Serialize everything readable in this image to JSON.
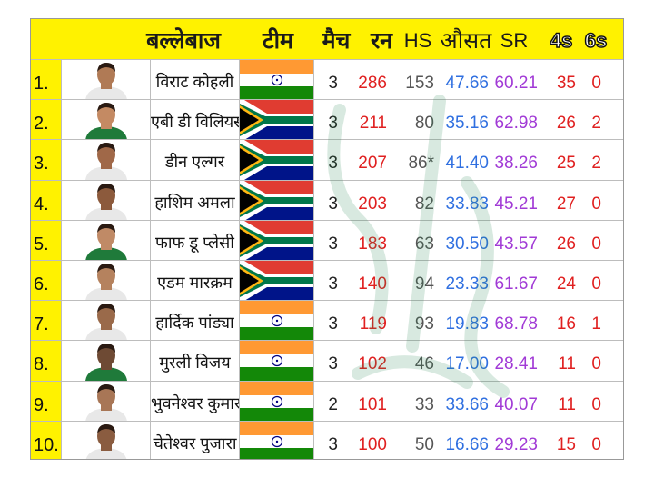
{
  "colors": {
    "header_bg": "#fff200",
    "runs": "#e02020",
    "average": "#2f6fe0",
    "strike_rate": "#a13ad6",
    "highest_score": "#555555"
  },
  "header": {
    "batsman": "बल्लेबाज",
    "team": "टीम",
    "matches": "मैच",
    "runs": "रन",
    "highest_score": "HS",
    "average": "औसत",
    "strike_rate": "SR",
    "fours": "4s",
    "sixes": "6s"
  },
  "rows": [
    {
      "rank": "1.",
      "name": "विराट कोहली",
      "team_flag": "india-flag",
      "matches": "3",
      "runs": "286",
      "hs": "153",
      "avg": "47.66",
      "sr": "60.21",
      "fours": "35",
      "sixes": "0"
    },
    {
      "rank": "2.",
      "name": "एबी डी विलियर्स",
      "team_flag": "south-africa-flag",
      "matches": "3",
      "runs": "211",
      "hs": "80",
      "avg": "35.16",
      "sr": "62.98",
      "fours": "26",
      "sixes": "2"
    },
    {
      "rank": "3.",
      "name": "डीन एल्गर",
      "team_flag": "south-africa-flag",
      "matches": "3",
      "runs": "207",
      "hs": "86*",
      "avg": "41.40",
      "sr": "38.26",
      "fours": "25",
      "sixes": "2"
    },
    {
      "rank": "4.",
      "name": "हाशिम अमला",
      "team_flag": "south-africa-flag",
      "matches": "3",
      "runs": "203",
      "hs": "82",
      "avg": "33.83",
      "sr": "45.21",
      "fours": "27",
      "sixes": "0"
    },
    {
      "rank": "5.",
      "name": "फाफ डू प्लेसी",
      "team_flag": "south-africa-flag",
      "matches": "3",
      "runs": "183",
      "hs": "63",
      "avg": "30.50",
      "sr": "43.57",
      "fours": "26",
      "sixes": "0"
    },
    {
      "rank": "6.",
      "name": "एडम मारक्रम",
      "team_flag": "south-africa-flag",
      "matches": "3",
      "runs": "140",
      "hs": "94",
      "avg": "23.33",
      "sr": "61.67",
      "fours": "24",
      "sixes": "0"
    },
    {
      "rank": "7.",
      "name": "हार्दिक पांड्या",
      "team_flag": "india-flag",
      "matches": "3",
      "runs": "119",
      "hs": "93",
      "avg": "19.83",
      "sr": "68.78",
      "fours": "16",
      "sixes": "1"
    },
    {
      "rank": "8.",
      "name": "मुरली विजय",
      "team_flag": "india-flag",
      "matches": "3",
      "runs": "102",
      "hs": "46",
      "avg": "17.00",
      "sr": "28.41",
      "fours": "11",
      "sixes": "0"
    },
    {
      "rank": "9.",
      "name": "भुवनेश्वर कुमार",
      "team_flag": "india-flag",
      "matches": "2",
      "runs": "101",
      "hs": "33",
      "avg": "33.66",
      "sr": "40.07",
      "fours": "11",
      "sixes": "0"
    },
    {
      "rank": "10.",
      "name": "चेतेश्वर पुजारा",
      "team_flag": "india-flag",
      "matches": "3",
      "runs": "100",
      "hs": "50",
      "avg": "16.66",
      "sr": "29.23",
      "fours": "15",
      "sixes": "0"
    }
  ]
}
